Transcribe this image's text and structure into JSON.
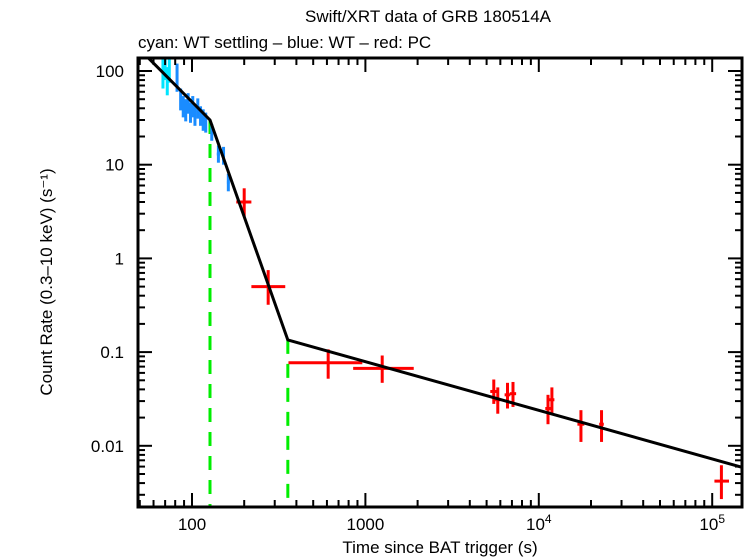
{
  "chart_data": {
    "type": "scatter",
    "title": "Swift/XRT data of GRB 180514A",
    "subtitle": "cyan: WT settling – blue: WT – red: PC",
    "xlabel": "Time since BAT trigger (s)",
    "ylabel": "Count Rate (0.3–10 keV) (s⁻¹)",
    "xscale": "log",
    "yscale": "log",
    "xlim": [
      50,
      150000
    ],
    "ylim": [
      0.0025,
      140
    ],
    "grid": false,
    "x_ticks": [
      {
        "value": 100,
        "label": "100"
      },
      {
        "value": 1000,
        "label": "1000"
      },
      {
        "value": 10000,
        "label": "10",
        "sup": "4"
      },
      {
        "value": 100000,
        "label": "10",
        "sup": "5"
      }
    ],
    "y_ticks": [
      {
        "value": 100,
        "label": "100"
      },
      {
        "value": 10,
        "label": "10"
      },
      {
        "value": 1,
        "label": "1"
      },
      {
        "value": 0.1,
        "label": "0.1"
      },
      {
        "value": 0.01,
        "label": "0.01"
      }
    ],
    "colors": {
      "wt_settling": "#00e5ff",
      "wt": "#1a8cff",
      "pc": "#ff0000",
      "model": "#000000",
      "breaks": "#00ee00"
    },
    "series": [
      {
        "name": "WT settling",
        "color_key": "wt_settling",
        "points": [
          {
            "x": 68,
            "y": 95,
            "xerr": [
              1,
              1
            ],
            "yerr": [
              30,
              40
            ]
          },
          {
            "x": 70,
            "y": 110,
            "xerr": [
              1,
              1
            ],
            "yerr": [
              30,
              30
            ]
          },
          {
            "x": 72,
            "y": 80,
            "xerr": [
              1,
              1
            ],
            "yerr": [
              25,
              30
            ]
          },
          {
            "x": 74,
            "y": 105,
            "xerr": [
              1,
              1
            ],
            "yerr": [
              30,
              35
            ]
          }
        ]
      },
      {
        "name": "WT",
        "color_key": "wt",
        "points": [
          {
            "x": 82,
            "y": 85,
            "xerr": [
              1,
              1
            ],
            "yerr": [
              25,
              35
            ]
          },
          {
            "x": 86,
            "y": 50,
            "xerr": [
              1,
              1
            ],
            "yerr": [
              12,
              15
            ]
          },
          {
            "x": 89,
            "y": 42,
            "xerr": [
              1,
              1
            ],
            "yerr": [
              10,
              12
            ]
          },
          {
            "x": 92,
            "y": 38,
            "xerr": [
              1,
              1
            ],
            "yerr": [
              9,
              12
            ]
          },
          {
            "x": 95,
            "y": 45,
            "xerr": [
              1,
              1
            ],
            "yerr": [
              10,
              13
            ]
          },
          {
            "x": 98,
            "y": 36,
            "xerr": [
              1,
              1
            ],
            "yerr": [
              8,
              10
            ]
          },
          {
            "x": 101,
            "y": 42,
            "xerr": [
              1,
              1
            ],
            "yerr": [
              10,
              12
            ]
          },
          {
            "x": 104,
            "y": 34,
            "xerr": [
              1,
              1
            ],
            "yerr": [
              8,
              10
            ]
          },
          {
            "x": 108,
            "y": 40,
            "xerr": [
              1,
              1
            ],
            "yerr": [
              9,
              11
            ]
          },
          {
            "x": 112,
            "y": 33,
            "xerr": [
              1,
              1
            ],
            "yerr": [
              7,
              9
            ]
          },
          {
            "x": 116,
            "y": 30,
            "xerr": [
              1,
              1
            ],
            "yerr": [
              7,
              9
            ]
          },
          {
            "x": 120,
            "y": 28,
            "xerr": [
              1,
              1
            ],
            "yerr": [
              6,
              8
            ]
          },
          {
            "x": 130,
            "y": 22,
            "xerr": [
              2,
              2
            ],
            "yerr": [
              4,
              5
            ]
          },
          {
            "x": 142,
            "y": 13,
            "xerr": [
              3,
              3
            ],
            "yerr": [
              2.5,
              3
            ]
          },
          {
            "x": 152,
            "y": 12.5,
            "xerr": [
              3,
              3
            ],
            "yerr": [
              2.5,
              3
            ]
          },
          {
            "x": 162,
            "y": 6.5,
            "xerr": [
              3,
              3
            ],
            "yerr": [
              1.3,
              1.5
            ]
          }
        ]
      },
      {
        "name": "PC",
        "color_key": "pc",
        "points": [
          {
            "x": 200,
            "y": 4.0,
            "xerr": [
              20,
              20
            ],
            "yerr": [
              1.2,
              1.6
            ]
          },
          {
            "x": 275,
            "y": 0.5,
            "xerr": [
              55,
              70
            ],
            "yerr": [
              0.18,
              0.25
            ]
          },
          {
            "x": 610,
            "y": 0.077,
            "xerr": [
              250,
              350
            ],
            "yerr": [
              0.025,
              0.03
            ]
          },
          {
            "x": 1250,
            "y": 0.067,
            "xerr": [
              400,
              650
            ],
            "yerr": [
              0.02,
              0.025
            ]
          },
          {
            "x": 5500,
            "y": 0.038,
            "xerr": [
              250,
              250
            ],
            "yerr": [
              0.01,
              0.013
            ]
          },
          {
            "x": 5800,
            "y": 0.031,
            "xerr": [
              200,
              200
            ],
            "yerr": [
              0.009,
              0.011
            ]
          },
          {
            "x": 6600,
            "y": 0.035,
            "xerr": [
              250,
              250
            ],
            "yerr": [
              0.01,
              0.012
            ]
          },
          {
            "x": 7100,
            "y": 0.036,
            "xerr": [
              300,
              300
            ],
            "yerr": [
              0.01,
              0.012
            ]
          },
          {
            "x": 11300,
            "y": 0.025,
            "xerr": [
              400,
              400
            ],
            "yerr": [
              0.008,
              0.01
            ]
          },
          {
            "x": 11900,
            "y": 0.031,
            "xerr": [
              400,
              400
            ],
            "yerr": [
              0.009,
              0.011
            ]
          },
          {
            "x": 17500,
            "y": 0.017,
            "xerr": [
              800,
              800
            ],
            "yerr": [
              0.006,
              0.007
            ]
          },
          {
            "x": 23000,
            "y": 0.017,
            "xerr": [
              700,
              700
            ],
            "yerr": [
              0.006,
              0.007
            ]
          },
          {
            "x": 113000,
            "y": 0.0042,
            "xerr": [
              10000,
              12000
            ],
            "yerr": [
              0.0015,
              0.002
            ]
          }
        ]
      }
    ],
    "model": {
      "name": "broken power-law fit",
      "points": [
        {
          "x": 56,
          "y": 138
        },
        {
          "x": 127,
          "y": 30
        },
        {
          "x": 357,
          "y": 0.135
        },
        {
          "x": 148600,
          "y": 0.0059
        }
      ]
    },
    "breaks": [
      127,
      357
    ]
  }
}
